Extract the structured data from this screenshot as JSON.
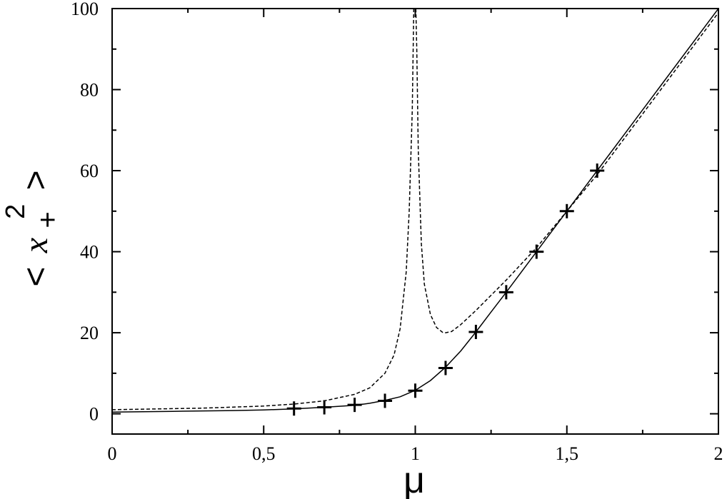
{
  "chart_data": {
    "type": "line",
    "title": "",
    "xlabel": "μ",
    "ylabel": {
      "open": "<",
      "var": "x",
      "sub": "+",
      "sup": "2",
      "close": ">"
    },
    "xlim": [
      0,
      2
    ],
    "ylim": [
      -5,
      100
    ],
    "xticks": [
      0,
      0.5,
      1,
      1.5,
      2
    ],
    "xtick_labels": [
      "0",
      "0,5",
      "1",
      "1,5",
      "2"
    ],
    "yticks": [
      0,
      20,
      40,
      60,
      80,
      100
    ],
    "ytick_labels": [
      "0",
      "20",
      "40",
      "60",
      "80",
      "100"
    ],
    "grid": false,
    "legend": "none",
    "series": [
      {
        "style": "solid",
        "color": "#000000",
        "x": [
          0,
          0.2,
          0.4,
          0.5,
          0.6,
          0.7,
          0.8,
          0.85,
          0.9,
          0.95,
          1.0,
          1.05,
          1.1,
          1.15,
          1.2,
          1.25,
          1.3,
          1.4,
          1.5,
          1.6,
          1.8,
          2.0
        ],
        "y": [
          0.4,
          0.6,
          0.8,
          0.95,
          1.2,
          1.6,
          2.1,
          2.6,
          3.3,
          4.2,
          5.8,
          8.2,
          11.5,
          15.5,
          20.2,
          25.1,
          30.0,
          40.0,
          50.0,
          60.0,
          80.0,
          100.0
        ]
      },
      {
        "style": "dashed",
        "color": "#000000",
        "x": [
          0,
          0.3,
          0.5,
          0.6,
          0.7,
          0.8,
          0.85,
          0.9,
          0.93,
          0.95,
          0.97,
          0.98,
          0.99,
          0.995,
          0.998,
          1.002,
          1.005,
          1.01,
          1.02,
          1.03,
          1.05,
          1.07,
          1.09,
          1.1,
          1.12,
          1.15,
          1.2,
          1.3,
          1.4,
          1.5,
          1.6,
          1.8,
          2.0
        ],
        "y": [
          1.0,
          1.4,
          1.9,
          2.4,
          3.2,
          4.8,
          6.4,
          10.0,
          14.5,
          21.0,
          35.0,
          50.0,
          75.0,
          100.0,
          100.0,
          100.0,
          90.0,
          65.0,
          42.0,
          32.0,
          24.5,
          21.3,
          20.1,
          20.0,
          20.3,
          22.0,
          25.5,
          33.0,
          41.0,
          50.0,
          59.0,
          79.0,
          99.0
        ]
      },
      {
        "style": "markers",
        "marker": "+",
        "color": "#000000",
        "x": [
          0.6,
          0.7,
          0.8,
          0.9,
          1.0,
          1.1,
          1.2,
          1.3,
          1.4,
          1.5,
          1.6
        ],
        "y": [
          1.3,
          1.6,
          2.2,
          3.2,
          5.7,
          11.3,
          20.2,
          30.0,
          40.0,
          50.0,
          60.0
        ]
      }
    ]
  }
}
